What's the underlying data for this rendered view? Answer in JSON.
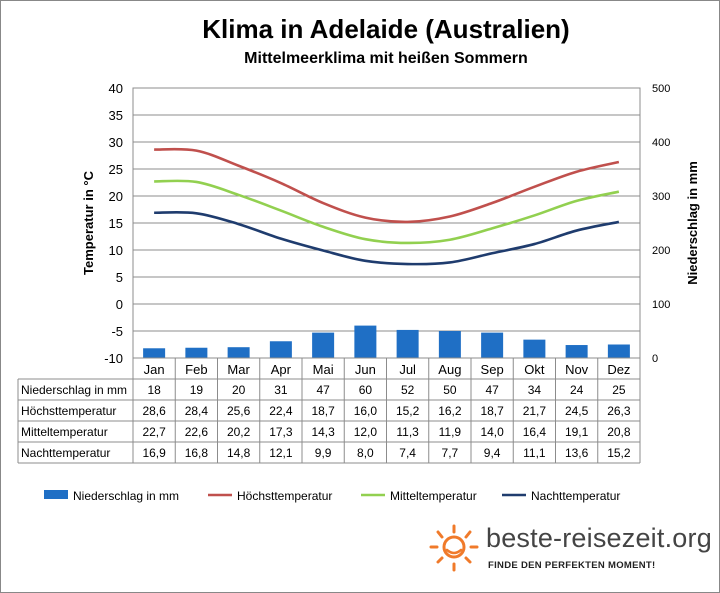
{
  "chart_data": {
    "type": "bar+line",
    "title": "Klima in Adelaide (Australien)",
    "subtitle": "Mittelmeerklima mit heißen Sommern",
    "categories": [
      "Jan",
      "Feb",
      "Mar",
      "Apr",
      "Mai",
      "Jun",
      "Jul",
      "Aug",
      "Sep",
      "Okt",
      "Nov",
      "Dez"
    ],
    "y_left": {
      "label": "Temperatur in °C",
      "ylim": [
        -10,
        40
      ],
      "ticks": [
        "40",
        "35",
        "30",
        "25",
        "20",
        "15",
        "10",
        "5",
        "0",
        "-5",
        "-10"
      ]
    },
    "y_right": {
      "label": "Niederschlag in mm",
      "ylim": [
        0,
        500
      ],
      "ticks": [
        "500",
        "400",
        "300",
        "200",
        "100",
        "0"
      ]
    },
    "grid": true,
    "legend_position": "bottom",
    "bar_series": {
      "name": "Niederschlag in mm",
      "axis": "right",
      "color": "#1F6FC5",
      "values": [
        18,
        19,
        20,
        31,
        47,
        60,
        52,
        50,
        47,
        34,
        24,
        25
      ]
    },
    "line_series": [
      {
        "name": "Höchsttemperatur",
        "axis": "left",
        "color": "#C0504D",
        "values": [
          28.6,
          28.4,
          25.6,
          22.4,
          18.7,
          16.0,
          15.2,
          16.2,
          18.7,
          21.7,
          24.5,
          26.3
        ]
      },
      {
        "name": "Mitteltemperatur",
        "axis": "left",
        "color": "#92D050",
        "values": [
          22.7,
          22.6,
          20.2,
          17.3,
          14.3,
          12.0,
          11.3,
          11.9,
          14.0,
          16.4,
          19.1,
          20.8
        ]
      },
      {
        "name": "Nachttemperatur",
        "axis": "left",
        "color": "#1F3C6E",
        "values": [
          16.9,
          16.8,
          14.8,
          12.1,
          9.9,
          8.0,
          7.4,
          7.7,
          9.4,
          11.1,
          13.6,
          15.2
        ]
      }
    ],
    "table": {
      "rows": [
        {
          "label": "Niederschlag in mm",
          "cells": [
            "18",
            "19",
            "20",
            "31",
            "47",
            "60",
            "52",
            "50",
            "47",
            "34",
            "24",
            "25"
          ]
        },
        {
          "label": "Höchsttemperatur",
          "cells": [
            "28,6",
            "28,4",
            "25,6",
            "22,4",
            "18,7",
            "16,0",
            "15,2",
            "16,2",
            "18,7",
            "21,7",
            "24,5",
            "26,3"
          ]
        },
        {
          "label": "Mitteltemperatur",
          "cells": [
            "22,7",
            "22,6",
            "20,2",
            "17,3",
            "14,3",
            "12,0",
            "11,3",
            "11,9",
            "14,0",
            "16,4",
            "19,1",
            "20,8"
          ]
        },
        {
          "label": "Nachttemperatur",
          "cells": [
            "16,9",
            "16,8",
            "14,8",
            "12,1",
            "9,9",
            "8,0",
            "7,4",
            "7,7",
            "9,4",
            "11,1",
            "13,6",
            "15,2"
          ]
        }
      ]
    }
  },
  "branding": {
    "name": "beste-reisezeit.org",
    "tagline": "FINDE DEN PERFEKTEN MOMENT!",
    "icon": "sun-icon",
    "accent_color": "#F07A2A"
  }
}
